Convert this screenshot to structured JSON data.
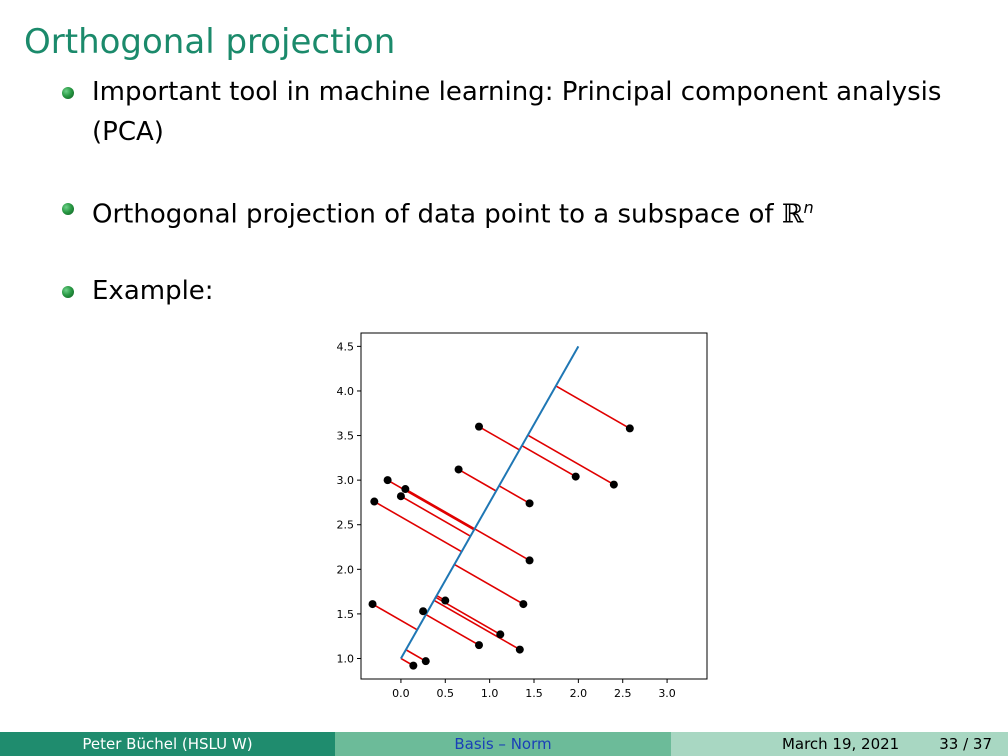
{
  "frame_title": "Orthogonal projection",
  "bullets": [
    {
      "text": "Important tool in machine learning: Principal component analysis (PCA)"
    },
    {
      "text_before": "Orthogonal projection of data point to a subspace of ",
      "math": "ℝ",
      "superscript": "n"
    },
    {
      "text": "Example:"
    }
  ],
  "footer": {
    "author": "Peter Büchel  (HSLU W)",
    "title": "Basis – Norm",
    "date": "March 19, 2021",
    "page": "33 / 37"
  },
  "colors": {
    "title": "#1b8a6b",
    "line": "#1f77b4",
    "projection": "#e00000",
    "point": "#000000"
  },
  "chart_data": {
    "type": "scatter",
    "xlim": [
      -0.45,
      3.45
    ],
    "ylim": [
      0.77,
      4.65
    ],
    "xticks": [
      "0.0",
      "0.5",
      "1.0",
      "1.5",
      "2.0",
      "2.5",
      "3.0"
    ],
    "yticks": [
      "1.0",
      "1.5",
      "2.0",
      "2.5",
      "3.0",
      "3.5",
      "4.0",
      "4.5"
    ],
    "line": {
      "x": [
        0.0,
        2.0
      ],
      "y": [
        1.0,
        4.5
      ]
    },
    "points": [
      {
        "x": -0.15,
        "y": 3.0
      },
      {
        "x": 0.05,
        "y": 2.9
      },
      {
        "x": 0.0,
        "y": 2.82
      },
      {
        "x": -0.3,
        "y": 2.76
      },
      {
        "x": 0.65,
        "y": 3.12
      },
      {
        "x": 0.88,
        "y": 3.6
      },
      {
        "x": 1.97,
        "y": 3.04
      },
      {
        "x": 2.4,
        "y": 2.95
      },
      {
        "x": 2.58,
        "y": 3.58
      },
      {
        "x": 1.45,
        "y": 2.74
      },
      {
        "x": 1.45,
        "y": 2.1
      },
      {
        "x": 1.38,
        "y": 1.61
      },
      {
        "x": 0.5,
        "y": 1.65
      },
      {
        "x": 0.25,
        "y": 1.53
      },
      {
        "x": 1.12,
        "y": 1.27
      },
      {
        "x": 1.34,
        "y": 1.1
      },
      {
        "x": 0.88,
        "y": 1.15
      },
      {
        "x": -0.32,
        "y": 1.61
      },
      {
        "x": 0.28,
        "y": 0.97
      },
      {
        "x": 0.14,
        "y": 0.92
      }
    ]
  }
}
